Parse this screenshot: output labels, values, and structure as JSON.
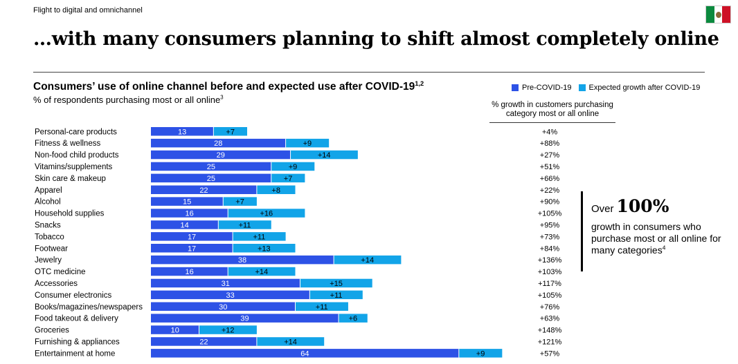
{
  "header": {
    "section_label": "Flight to digital and omnichannel",
    "title": "…with many consumers planning to shift almost completely online"
  },
  "flag": {
    "colors": [
      "#0b8a3e",
      "#ffffff",
      "#ce1126"
    ],
    "icon": "mexico-flag-icon"
  },
  "chart_title": {
    "text": "Consumers’ use of online channel before and expected use after COVID-19",
    "sup": "1,2"
  },
  "chart_subtitle": {
    "text": "% of respondents purchasing most or all online",
    "sup": "3"
  },
  "legend": {
    "pre": "Pre-COVID-19",
    "growth": "Expected growth after COVID-19"
  },
  "colors": {
    "pre": "#2d52e6",
    "growth": "#12a4e8"
  },
  "growth_header": {
    "line1": "% growth in customers purchasing",
    "line2": "category most or all online"
  },
  "callout": {
    "over": "Over",
    "big": "100%",
    "text": "growth in consumers who purchase most or all online for many categories",
    "sup": "4"
  },
  "chart_data": {
    "type": "bar",
    "orientation": "horizontal",
    "stacked": true,
    "title": "Consumers’ use of online channel before and expected use after COVID-19",
    "subtitle": "% of respondents purchasing most or all online",
    "categories": [
      "Personal-care products",
      "Fitness & wellness",
      "Non-food child products",
      "Vitamins/supplements",
      "Skin care & makeup",
      "Apparel",
      "Alcohol",
      "Household supplies",
      "Snacks",
      "Tobacco",
      "Footwear",
      "Jewelry",
      "OTC medicine",
      "Accessories",
      "Consumer electronics",
      "Books/magazines/newspapers",
      "Food takeout & delivery",
      "Groceries",
      "Furnishing & appliances",
      "Entertainment at home"
    ],
    "series": [
      {
        "name": "Pre-COVID-19",
        "values": [
          13,
          28,
          29,
          25,
          25,
          22,
          15,
          16,
          14,
          17,
          17,
          38,
          16,
          31,
          33,
          30,
          39,
          10,
          22,
          64
        ]
      },
      {
        "name": "Expected growth after COVID-19",
        "values": [
          7,
          9,
          14,
          9,
          7,
          8,
          7,
          16,
          11,
          11,
          13,
          14,
          14,
          15,
          11,
          11,
          6,
          12,
          14,
          9
        ]
      }
    ],
    "growth_pct": [
      "+4%",
      "+88%",
      "+27%",
      "+51%",
      "+66%",
      "+22%",
      "+90%",
      "+105%",
      "+95%",
      "+73%",
      "+84%",
      "+136%",
      "+103%",
      "+117%",
      "+105%",
      "+76%",
      "+63%",
      "+148%",
      "+121%",
      "+57%"
    ],
    "legend_position": "top-right",
    "grid": false
  }
}
